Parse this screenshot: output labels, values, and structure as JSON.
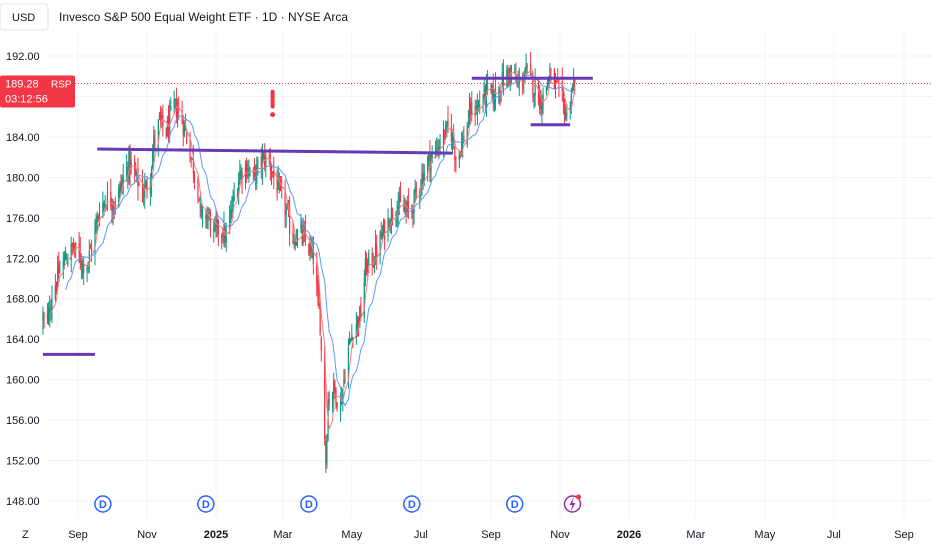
{
  "header": {
    "currency": "USD",
    "title": "Invesco S&P 500 Equal Weight ETF · 1D · NYSE Arca"
  },
  "price_label": {
    "price": "189.28",
    "symbol": "RSP",
    "countdown": "03:12:56",
    "color": "#f23645"
  },
  "axis_footer": {
    "timezone": "Z"
  },
  "colors": {
    "up": "#089981",
    "down": "#f23645",
    "ma_fast": "#f77c80",
    "ma_slow": "#5b9cf6",
    "trendline": "#673ab7",
    "dividend": "#2962ff",
    "alert": "#f23645",
    "grid": "#f0f3fa"
  },
  "chart_data": {
    "type": "candlestick",
    "title": "Invesco S&P 500 Equal Weight ETF · 1D · NYSE Arca",
    "ylim": [
      146,
      194
    ],
    "yticks": [
      "192.00",
      "188.00",
      "184.00",
      "180.00",
      "176.00",
      "172.00",
      "168.00",
      "164.00",
      "160.00",
      "156.00",
      "152.00",
      "148.00"
    ],
    "x_ticks": [
      "Sep",
      "Nov",
      "2025",
      "Mar",
      "May",
      "Jul",
      "Sep",
      "Nov",
      "2026",
      "Mar",
      "May",
      "Jul",
      "Sep"
    ],
    "x_tick_dates": [
      "2024-09-01",
      "2024-11-01",
      "2025-01-01",
      "2025-03-01",
      "2025-05-01",
      "2025-07-01",
      "2025-09-01",
      "2025-11-01",
      "2026-01-01",
      "2026-03-01",
      "2026-05-01",
      "2026-07-01",
      "2026-09-01"
    ],
    "bold_ticks": [
      "2025",
      "2026"
    ],
    "x_range": [
      "2024-07-29",
      "2026-09-30"
    ],
    "last_price": 189.28,
    "grid": true,
    "price_path": [
      [
        "2024-08-01",
        166.0
      ],
      [
        "2024-08-05",
        165.5
      ],
      [
        "2024-08-09",
        168.5
      ],
      [
        "2024-08-15",
        170.5
      ],
      [
        "2024-08-21",
        172.0
      ],
      [
        "2024-08-28",
        173.0
      ],
      [
        "2024-09-03",
        172.0
      ],
      [
        "2024-09-08",
        171.0
      ],
      [
        "2024-09-15",
        174.0
      ],
      [
        "2024-09-20",
        177.0
      ],
      [
        "2024-09-27",
        178.0
      ],
      [
        "2024-10-04",
        177.5
      ],
      [
        "2024-10-10",
        179.5
      ],
      [
        "2024-10-16",
        181.5
      ],
      [
        "2024-10-22",
        180.0
      ],
      [
        "2024-10-28",
        178.5
      ],
      [
        "2024-11-03",
        179.5
      ],
      [
        "2024-11-07",
        183.5
      ],
      [
        "2024-11-12",
        185.5
      ],
      [
        "2024-11-18",
        184.5
      ],
      [
        "2024-11-25",
        187.0
      ],
      [
        "2024-11-29",
        186.5
      ],
      [
        "2024-12-04",
        185.0
      ],
      [
        "2024-12-10",
        182.0
      ],
      [
        "2024-12-16",
        179.0
      ],
      [
        "2024-12-19",
        175.5
      ],
      [
        "2024-12-24",
        176.5
      ],
      [
        "2024-12-30",
        174.5
      ],
      [
        "2025-01-05",
        175.0
      ],
      [
        "2025-01-10",
        174.0
      ],
      [
        "2025-01-16",
        177.5
      ],
      [
        "2025-01-22",
        180.5
      ],
      [
        "2025-01-28",
        181.0
      ],
      [
        "2025-02-03",
        180.0
      ],
      [
        "2025-02-10",
        181.5
      ],
      [
        "2025-02-16",
        182.0
      ],
      [
        "2025-02-21",
        180.0
      ],
      [
        "2025-02-26",
        178.5
      ],
      [
        "2025-03-03",
        177.0
      ],
      [
        "2025-03-10",
        174.0
      ],
      [
        "2025-03-16",
        174.5
      ],
      [
        "2025-03-22",
        173.5
      ],
      [
        "2025-03-28",
        172.0
      ],
      [
        "2025-04-03",
        165.5
      ],
      [
        "2025-04-08",
        152.0
      ],
      [
        "2025-04-10",
        158.0
      ],
      [
        "2025-04-15",
        159.0
      ],
      [
        "2025-04-21",
        157.5
      ],
      [
        "2025-04-27",
        162.5
      ],
      [
        "2025-05-02",
        165.0
      ],
      [
        "2025-05-09",
        166.5
      ],
      [
        "2025-05-13",
        171.0
      ],
      [
        "2025-05-20",
        172.0
      ],
      [
        "2025-05-27",
        174.0
      ],
      [
        "2025-06-03",
        176.0
      ],
      [
        "2025-06-10",
        177.5
      ],
      [
        "2025-06-17",
        176.5
      ],
      [
        "2025-06-23",
        177.0
      ],
      [
        "2025-06-30",
        179.5
      ],
      [
        "2025-07-07",
        181.5
      ],
      [
        "2025-07-14",
        182.5
      ],
      [
        "2025-07-20",
        184.0
      ],
      [
        "2025-07-27",
        185.0
      ],
      [
        "2025-08-01",
        182.0
      ],
      [
        "2025-08-07",
        183.5
      ],
      [
        "2025-08-14",
        186.5
      ],
      [
        "2025-08-21",
        187.0
      ],
      [
        "2025-08-28",
        188.5
      ],
      [
        "2025-09-04",
        188.0
      ],
      [
        "2025-09-11",
        189.5
      ],
      [
        "2025-09-18",
        190.5
      ],
      [
        "2025-09-25",
        189.0
      ],
      [
        "2025-10-02",
        190.5
      ],
      [
        "2025-10-09",
        189.0
      ],
      [
        "2025-10-16",
        187.5
      ],
      [
        "2025-10-22",
        190.0
      ],
      [
        "2025-10-28",
        189.0
      ],
      [
        "2025-11-03",
        187.5
      ],
      [
        "2025-11-07",
        186.0
      ],
      [
        "2025-11-11",
        188.5
      ],
      [
        "2025-11-14",
        189.28
      ]
    ],
    "trendlines": [
      {
        "from": [
          "2024-08-01",
          162.5
        ],
        "to": [
          "2024-09-16",
          162.5
        ]
      },
      {
        "from": [
          "2024-09-18",
          182.8
        ],
        "to": [
          "2025-07-29",
          182.4
        ]
      },
      {
        "from": [
          "2025-08-15",
          189.8
        ],
        "to": [
          "2025-11-30",
          189.8
        ]
      },
      {
        "from": [
          "2025-10-06",
          185.2
        ],
        "to": [
          "2025-11-10",
          185.2
        ]
      }
    ],
    "dividend_markers": [
      "2024-09-23",
      "2024-12-23",
      "2025-03-24",
      "2025-06-23",
      "2025-09-22"
    ],
    "dividend_label": "D",
    "alert_marker": {
      "date": "2025-02-20",
      "price": 186.5,
      "symbol": "!"
    },
    "event_marker": {
      "date": "2025-11-12"
    }
  }
}
